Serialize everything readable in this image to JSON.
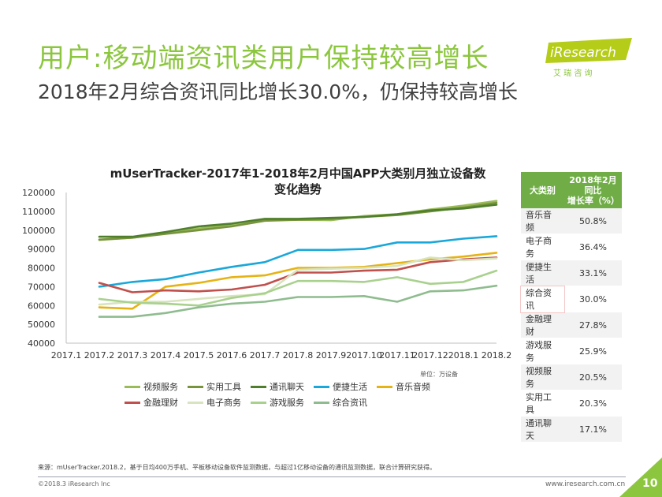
{
  "header": {
    "title": "用户:移动端资讯类用户保持较高增长",
    "subtitle": "2018年2月综合资讯同比增长30.0%，仍保持较高增长"
  },
  "logo": {
    "name": "iResearch",
    "tagline": "艾 瑞 咨 询"
  },
  "chart_data": {
    "type": "line",
    "title_line1": "mUserTracker-2017年1-2018年2月中国APP大类别月独立设备数",
    "title_line2": "变化趋势",
    "unit_note": "单位：万设备",
    "x": [
      "2017.1",
      "2017.2",
      "2017.3",
      "2017.4",
      "2017.5",
      "2017.6",
      "2017.7",
      "2017.8",
      "2017.9",
      "2017.10",
      "2017.11",
      "2017.12",
      "2018.1",
      "2018.2"
    ],
    "y_ticks": [
      "40000",
      "50000",
      "60000",
      "70000",
      "80000",
      "90000",
      "100000",
      "110000",
      "120000"
    ],
    "ylim": [
      40000,
      120000
    ],
    "grid": false,
    "legend_position": "bottom",
    "series": [
      {
        "name": "视频服务",
        "color": "#9bbb59",
        "values": [
          null,
          94800,
          96000,
          98500,
          100800,
          103000,
          105500,
          105500,
          105300,
          107500,
          108500,
          111000,
          113000,
          115500
        ]
      },
      {
        "name": "实用工具",
        "color": "#77933c",
        "values": [
          null,
          95000,
          96000,
          98000,
          100000,
          102000,
          105000,
          105500,
          106000,
          107000,
          108000,
          110000,
          112000,
          114500
        ]
      },
      {
        "name": "通讯聊天",
        "color": "#4f7f2c",
        "values": [
          null,
          96500,
          96500,
          99000,
          102000,
          103500,
          106000,
          106000,
          106500,
          107000,
          108500,
          110500,
          111500,
          113500
        ]
      },
      {
        "name": "便捷生活",
        "color": "#1aa7d9",
        "values": [
          null,
          70000,
          72500,
          74000,
          77500,
          80500,
          83000,
          89500,
          89500,
          90000,
          93500,
          93500,
          95500,
          96800
        ]
      },
      {
        "name": "音乐音频",
        "color": "#e6b315",
        "values": [
          null,
          59000,
          58300,
          70000,
          72000,
          75000,
          76000,
          80000,
          80000,
          80500,
          82500,
          84500,
          86000,
          88000
        ]
      },
      {
        "name": "金融理财",
        "color": "#c0504d",
        "values": [
          null,
          72000,
          67000,
          68000,
          67500,
          68500,
          71000,
          77500,
          77500,
          78500,
          79000,
          83000,
          84500,
          85500
        ]
      },
      {
        "name": "电子商务",
        "color": "#d7e4bd",
        "values": [
          null,
          60500,
          62000,
          62000,
          63500,
          65000,
          66000,
          79000,
          79500,
          80000,
          81000,
          85500,
          84000,
          85000
        ]
      },
      {
        "name": "游戏服务",
        "color": "#a9d18e",
        "values": [
          null,
          63500,
          61500,
          61000,
          60000,
          64000,
          66500,
          73000,
          73000,
          72500,
          75000,
          71500,
          72500,
          78500
        ]
      },
      {
        "name": "综合资讯",
        "color": "#8fbc8f",
        "values": [
          null,
          54000,
          54000,
          56000,
          59000,
          61000,
          62000,
          64500,
          64500,
          65000,
          62000,
          67500,
          68000,
          70500
        ]
      }
    ]
  },
  "growth_table": {
    "col1_header": "大类别",
    "col2_header_line1": "2018年2月",
    "col2_header_line2": "同比",
    "col2_header_line3": "增长率（%）",
    "rows": [
      {
        "category": "音乐音频",
        "rate": "50.8%"
      },
      {
        "category": "电子商务",
        "rate": "36.4%"
      },
      {
        "category": "便捷生活",
        "rate": "33.1%"
      },
      {
        "category": "综合资讯",
        "rate": "30.0%"
      },
      {
        "category": "金融理财",
        "rate": "27.8%"
      },
      {
        "category": "游戏服务",
        "rate": "25.9%"
      },
      {
        "category": "视频服务",
        "rate": "20.5%"
      },
      {
        "category": "实用工具",
        "rate": "20.3%"
      },
      {
        "category": "通讯聊天",
        "rate": "17.1%"
      }
    ]
  },
  "footer": {
    "source": "来源：mUserTracker.2018.2，基于日均400万手机、平板移动设备软件监测数据，与超过1亿移动设备的通讯监测数据，联合计算研究获得。",
    "copyright": "©2018.3 iResearch Inc",
    "website": "www.iresearch.com.cn",
    "page": "10"
  }
}
